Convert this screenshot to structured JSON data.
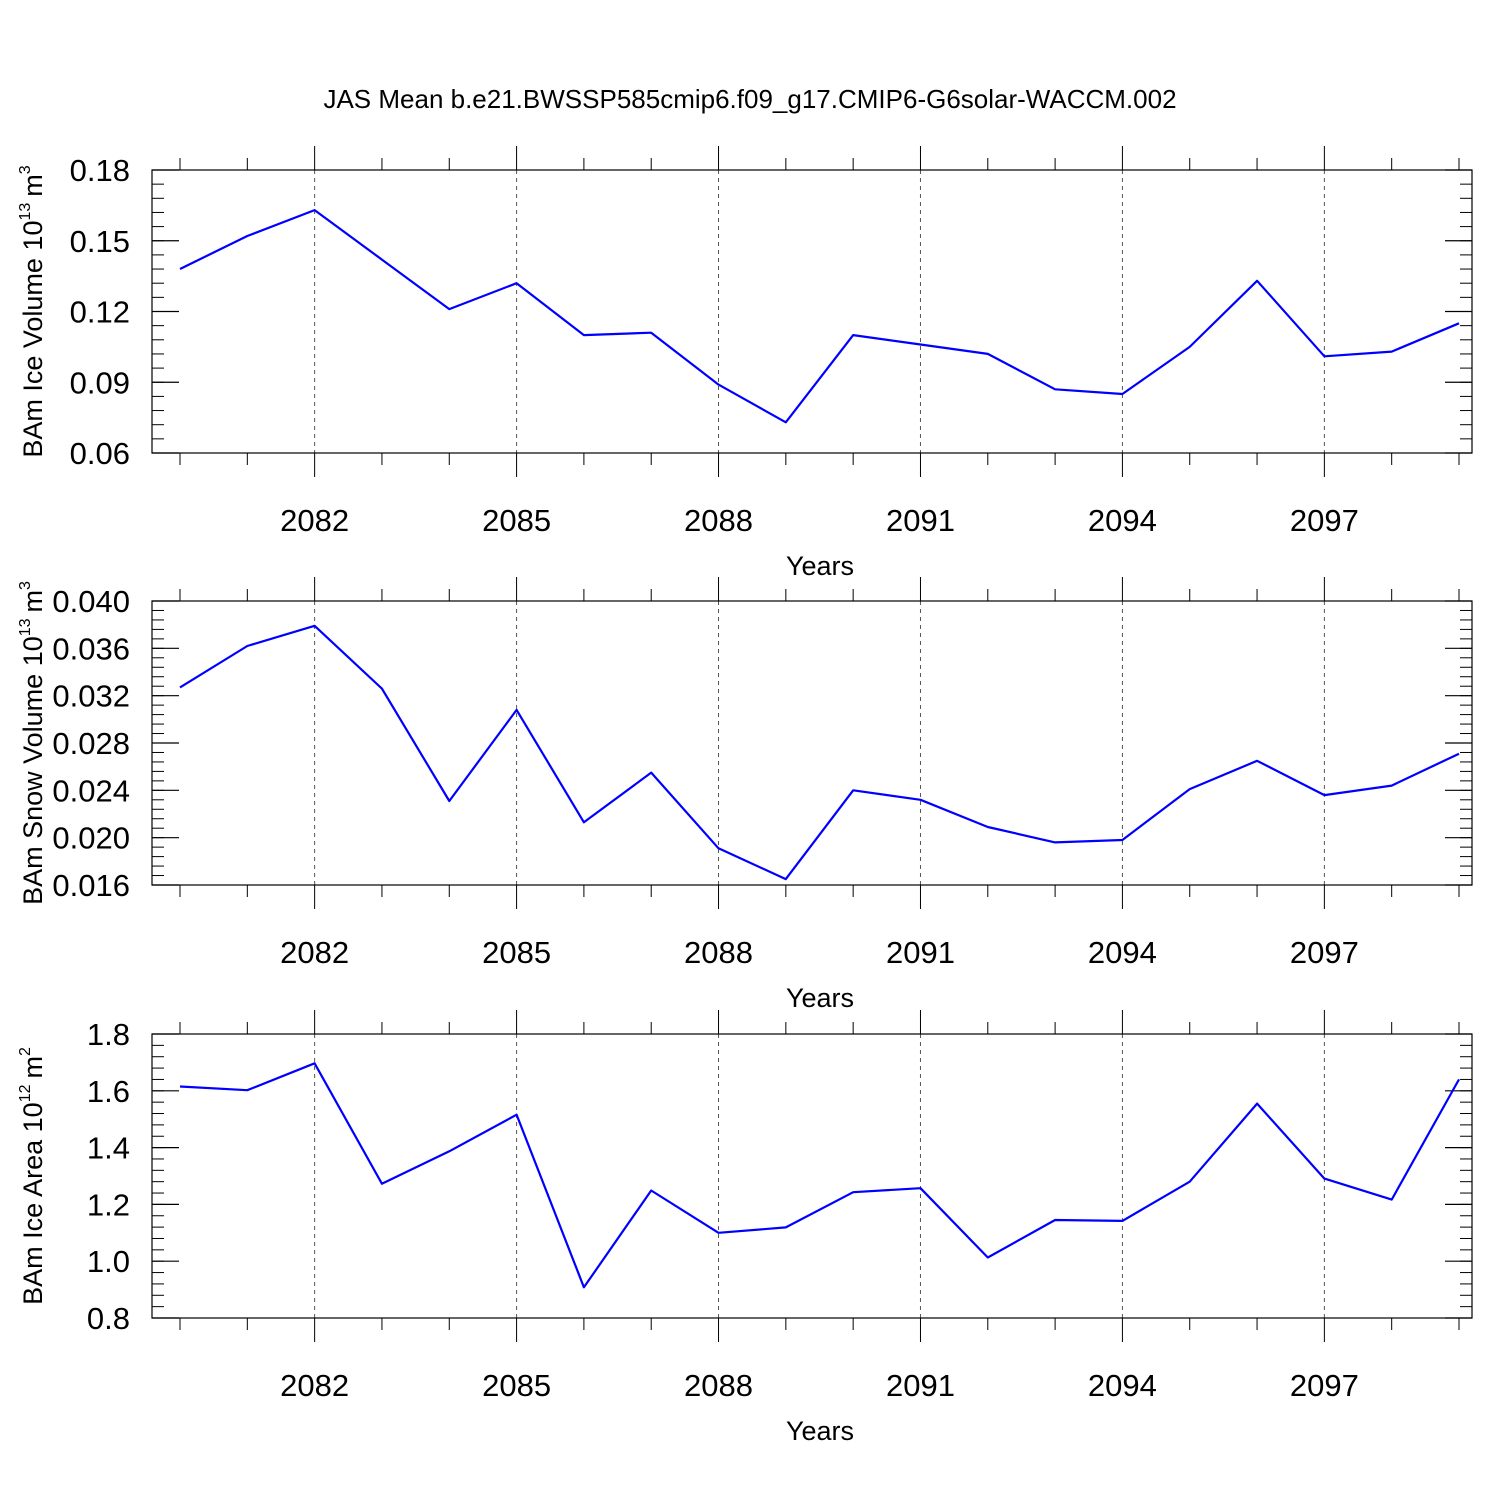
{
  "figure_title": "JAS Mean b.e21.BWSSP585cmip6.f09_g17.CMIP6-G6solar-WACCM.002",
  "chart_data": [
    {
      "type": "line",
      "ylabel": "BAm Ice Volume 10",
      "ylabel_exp": "13",
      "ylabel_unit": "m",
      "ylabel_unit_exp": "3",
      "xlabel": "Years",
      "xlim": [
        2080,
        2099
      ],
      "ylim": [
        0.06,
        0.18
      ],
      "yticks": [
        0.06,
        0.09,
        0.12,
        0.15,
        0.18
      ],
      "ytick_labels": [
        "0.06",
        "0.09",
        "0.12",
        "0.15",
        "0.18"
      ],
      "yminor_step": 0.006,
      "xticks": [
        2082,
        2085,
        2088,
        2091,
        2094,
        2097
      ],
      "xtick_labels": [
        "2082",
        "2085",
        "2088",
        "2091",
        "2094",
        "2097"
      ],
      "grid": "vertical-dashed-at-major-x",
      "color": "#0000ff",
      "x": [
        2080,
        2081,
        2082,
        2083,
        2084,
        2085,
        2086,
        2087,
        2088,
        2089,
        2090,
        2091,
        2092,
        2093,
        2094,
        2095,
        2096,
        2097,
        2098,
        2099
      ],
      "y": [
        0.138,
        0.152,
        0.163,
        0.142,
        0.121,
        0.132,
        0.11,
        0.111,
        0.089,
        0.073,
        0.11,
        0.106,
        0.102,
        0.087,
        0.085,
        0.105,
        0.133,
        0.101,
        0.103,
        0.115
      ]
    },
    {
      "type": "line",
      "ylabel": "BAm Snow Volume 10",
      "ylabel_exp": "13",
      "ylabel_unit": "m",
      "ylabel_unit_exp": "3",
      "xlabel": "Years",
      "xlim": [
        2080,
        2099
      ],
      "ylim": [
        0.016,
        0.04
      ],
      "yticks": [
        0.016,
        0.02,
        0.024,
        0.028,
        0.032,
        0.036,
        0.04
      ],
      "ytick_labels": [
        "0.016",
        "0.020",
        "0.024",
        "0.028",
        "0.032",
        "0.036",
        "0.040"
      ],
      "yminor_step": 0.0008,
      "xticks": [
        2082,
        2085,
        2088,
        2091,
        2094,
        2097
      ],
      "xtick_labels": [
        "2082",
        "2085",
        "2088",
        "2091",
        "2094",
        "2097"
      ],
      "grid": "vertical-dashed-at-major-x",
      "color": "#0000ff",
      "x": [
        2080,
        2081,
        2082,
        2083,
        2084,
        2085,
        2086,
        2087,
        2088,
        2089,
        2090,
        2091,
        2092,
        2093,
        2094,
        2095,
        2096,
        2097,
        2098,
        2099
      ],
      "y": [
        0.0327,
        0.0362,
        0.0379,
        0.0326,
        0.0231,
        0.0308,
        0.0213,
        0.0255,
        0.0191,
        0.0165,
        0.024,
        0.0232,
        0.0209,
        0.0196,
        0.0198,
        0.0241,
        0.0265,
        0.0236,
        0.0244,
        0.0271
      ]
    },
    {
      "type": "line",
      "ylabel": "BAm Ice Area 10",
      "ylabel_exp": "12",
      "ylabel_unit": "m",
      "ylabel_unit_exp": "2",
      "xlabel": "Years",
      "xlim": [
        2080,
        2099
      ],
      "ylim": [
        0.8,
        1.8
      ],
      "yticks": [
        0.8,
        1.0,
        1.2,
        1.4,
        1.6,
        1.8
      ],
      "ytick_labels": [
        "0.8",
        "1.0",
        "1.2",
        "1.4",
        "1.6",
        "1.8"
      ],
      "yminor_step": 0.04,
      "xticks": [
        2082,
        2085,
        2088,
        2091,
        2094,
        2097
      ],
      "xtick_labels": [
        "2082",
        "2085",
        "2088",
        "2091",
        "2094",
        "2097"
      ],
      "grid": "vertical-dashed-at-major-x",
      "color": "#0000ff",
      "x": [
        2080,
        2081,
        2082,
        2083,
        2084,
        2085,
        2086,
        2087,
        2088,
        2089,
        2090,
        2091,
        2092,
        2093,
        2094,
        2095,
        2096,
        2097,
        2098,
        2099
      ],
      "y": [
        1.615,
        1.602,
        1.697,
        1.273,
        1.387,
        1.516,
        0.908,
        1.249,
        1.1,
        1.119,
        1.243,
        1.257,
        1.013,
        1.145,
        1.142,
        1.28,
        1.555,
        1.291,
        1.217,
        1.64
      ]
    }
  ]
}
